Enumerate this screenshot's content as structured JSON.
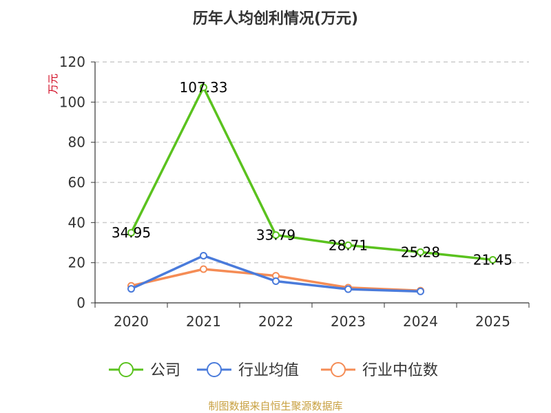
{
  "chart_data": {
    "type": "line",
    "title": "历年人均创利情况(万元)",
    "xlabel": "",
    "ylabel": "万元",
    "categories": [
      "2020",
      "2021",
      "2022",
      "2023",
      "2024",
      "2025"
    ],
    "ylim": [
      0,
      120
    ],
    "yticks": [
      0,
      20,
      40,
      60,
      80,
      100,
      120
    ],
    "grid": true,
    "legend_position": "bottom",
    "series": [
      {
        "name": "公司",
        "color": "#5ac21e",
        "values": [
          34.95,
          107.33,
          33.79,
          28.71,
          25.28,
          21.45
        ],
        "labels": [
          "34.95",
          "107.33",
          "33.79",
          "28.71",
          "25.28",
          "21.45"
        ]
      },
      {
        "name": "行业均值",
        "color": "#4a7bdb",
        "values": [
          7.0,
          23.5,
          10.8,
          6.8,
          5.7,
          null
        ]
      },
      {
        "name": "行业中位数",
        "color": "#f58c55",
        "values": [
          8.5,
          16.8,
          13.5,
          7.6,
          6.1,
          null
        ]
      }
    ]
  },
  "footer": "制图数据来自恒生聚源数据库"
}
